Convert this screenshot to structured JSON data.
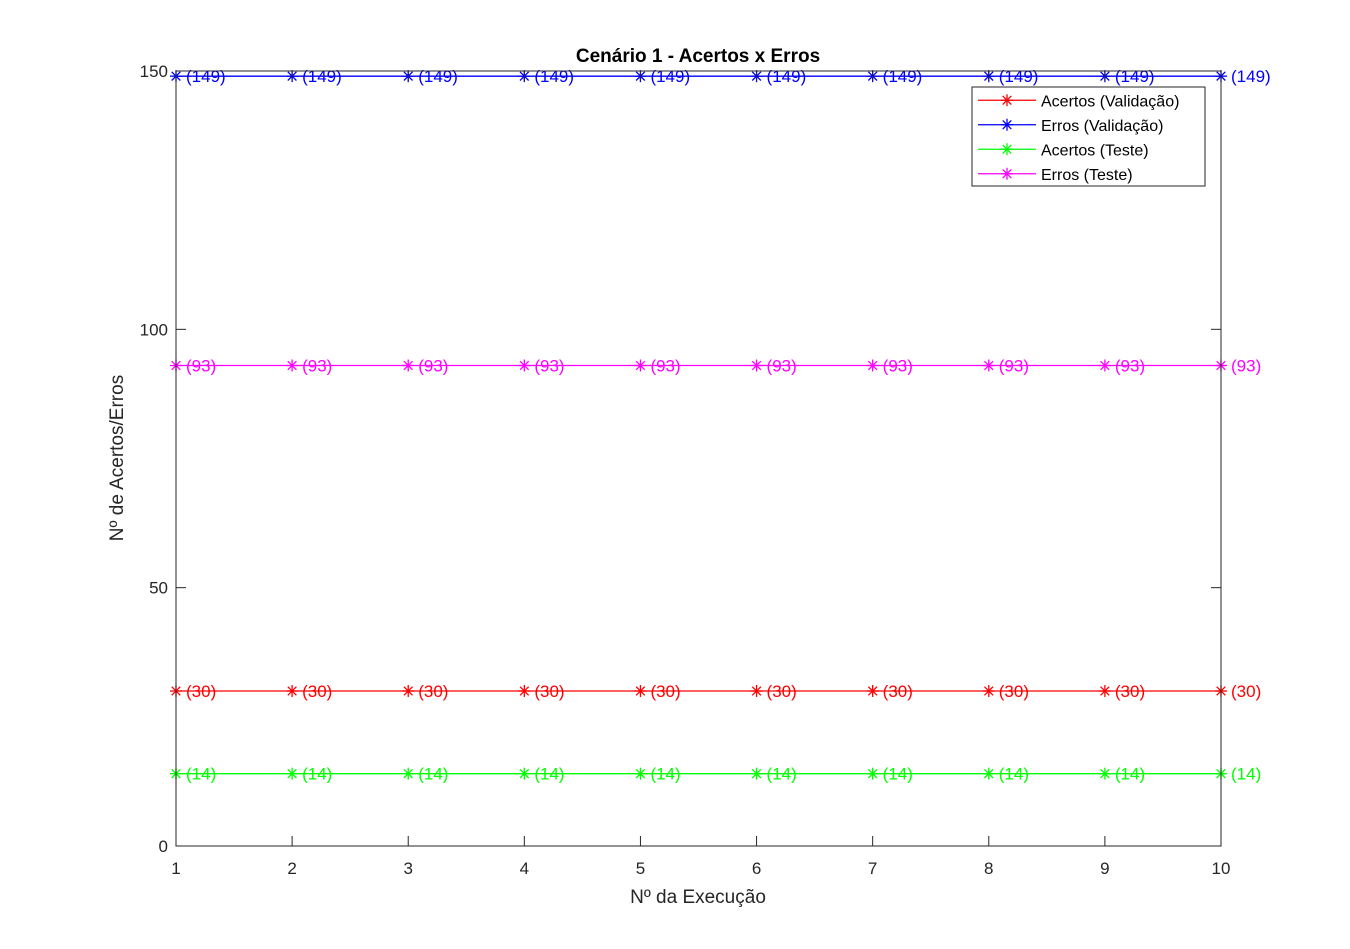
{
  "chart_data": {
    "type": "line",
    "title": "Cenário 1 - Acertos x Erros",
    "xlabel": "Nº da Execução",
    "ylabel": "Nº de Acertos/Erros",
    "xlim": [
      1,
      10
    ],
    "ylim": [
      0,
      150
    ],
    "x_ticks": [
      1,
      2,
      3,
      4,
      5,
      6,
      7,
      8,
      9,
      10
    ],
    "y_ticks": [
      0,
      50,
      100,
      150
    ],
    "x": [
      1,
      2,
      3,
      4,
      5,
      6,
      7,
      8,
      9,
      10
    ],
    "grid": false,
    "legend_position": "top-right",
    "marker": "asterisk",
    "series": [
      {
        "name": "Acertos (Validação)",
        "color": "#ff0000",
        "values": [
          30,
          30,
          30,
          30,
          30,
          30,
          30,
          30,
          30,
          30
        ]
      },
      {
        "name": "Erros (Validação)",
        "color": "#0000ff",
        "values": [
          149,
          149,
          149,
          149,
          149,
          149,
          149,
          149,
          149,
          149
        ]
      },
      {
        "name": "Acertos (Teste)",
        "color": "#00ff00",
        "values": [
          14,
          14,
          14,
          14,
          14,
          14,
          14,
          14,
          14,
          14
        ]
      },
      {
        "name": "Erros (Teste)",
        "color": "#ff00ff",
        "values": [
          93,
          93,
          93,
          93,
          93,
          93,
          93,
          93,
          93,
          93
        ]
      }
    ]
  }
}
